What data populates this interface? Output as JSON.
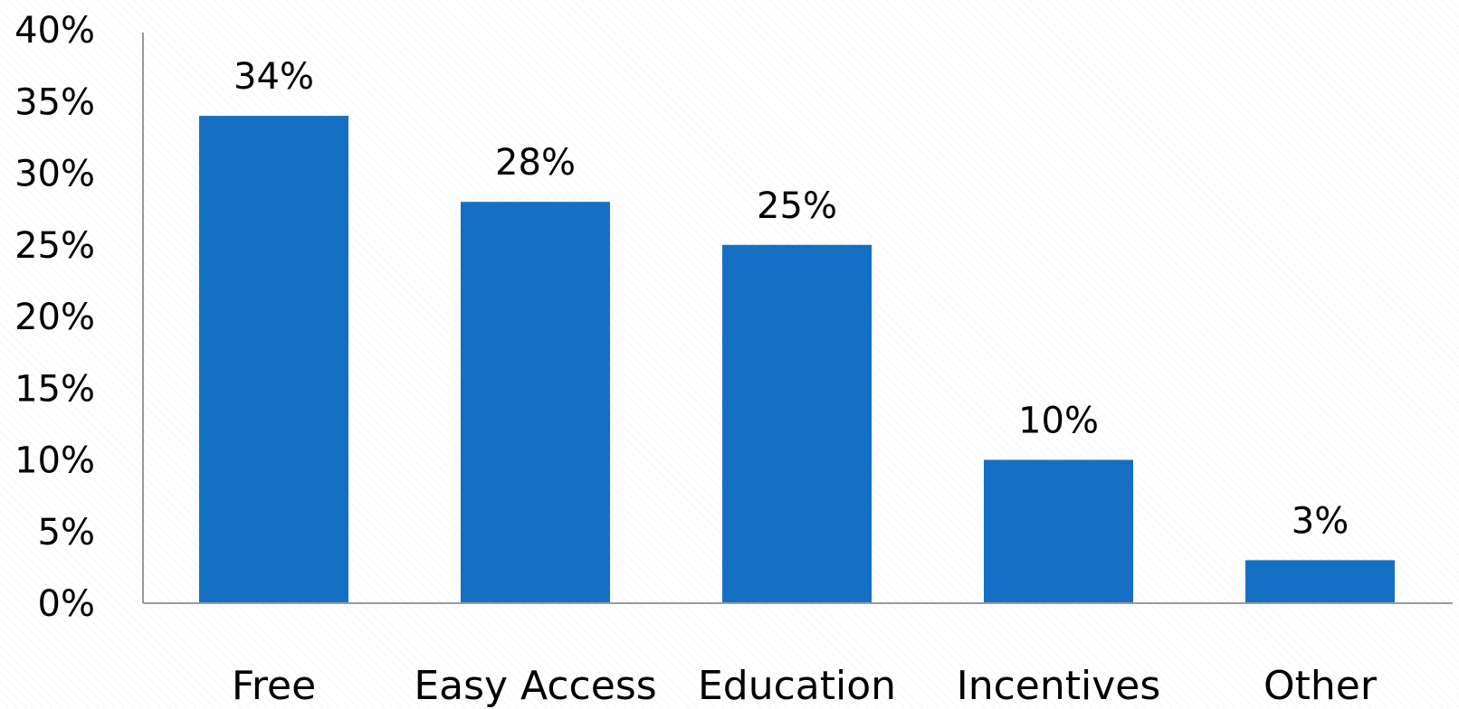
{
  "chart_data": {
    "type": "bar",
    "title": "",
    "xlabel": "",
    "ylabel": "",
    "categories": [
      "Free",
      "Easy Access",
      "Education",
      "Incentives",
      "Other"
    ],
    "values": [
      34,
      28,
      25,
      10,
      3
    ],
    "data_labels": [
      "34%",
      "28%",
      "25%",
      "10%",
      "3%"
    ],
    "ylim": [
      0,
      40
    ],
    "yticks": [
      0,
      5,
      10,
      15,
      20,
      25,
      30,
      35,
      40
    ],
    "ytick_labels": [
      "0%",
      "5%",
      "10%",
      "15%",
      "20%",
      "25%",
      "30%",
      "35%",
      "40%"
    ],
    "grid": false,
    "legend": "none",
    "bar_color": "#1570C4",
    "axis_color": "#9A9A9A"
  }
}
